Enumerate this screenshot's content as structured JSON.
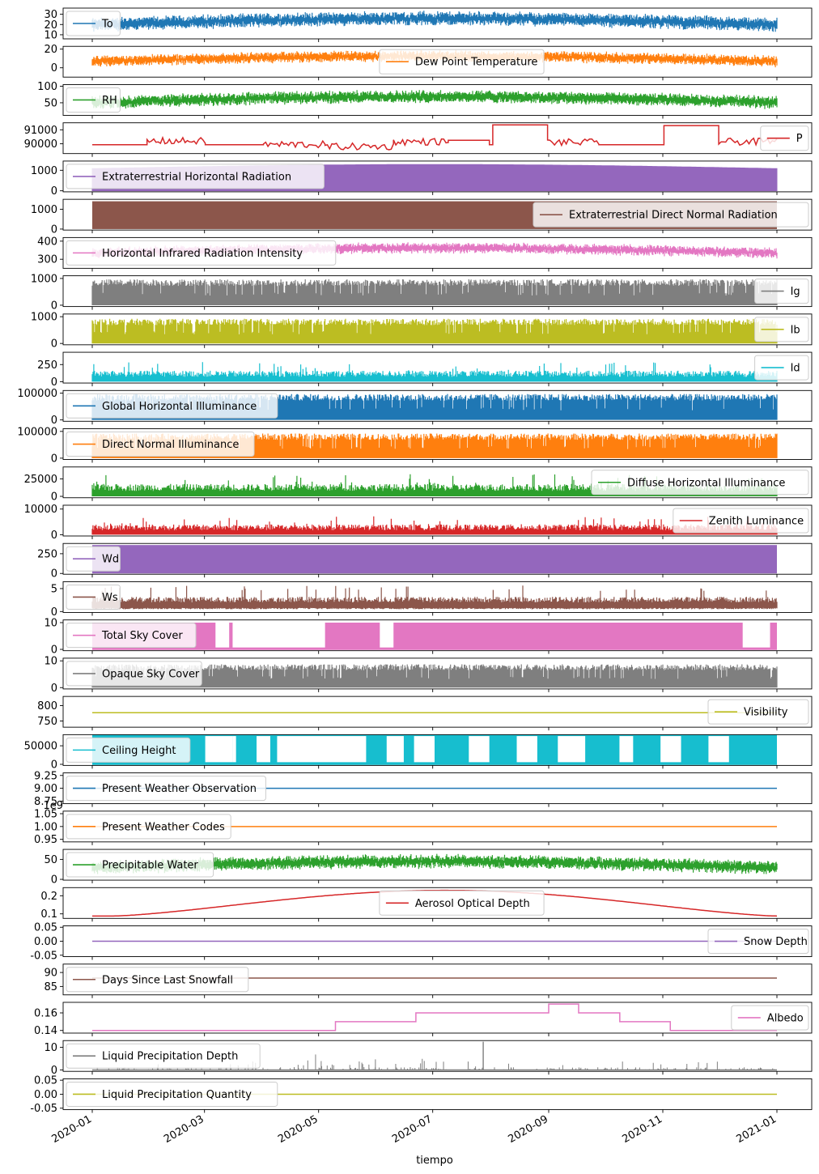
{
  "chart_data": {
    "type": "line",
    "xlabel": "tiempo",
    "x_ticks": [
      "2020-01",
      "2020-03",
      "2020-05",
      "2020-07",
      "2020-09",
      "2020-11",
      "2021-01"
    ],
    "x_range": [
      "2020-01-01",
      "2021-01-01"
    ],
    "panels": [
      {
        "name": "To",
        "color": "#1f77b4",
        "yticks": [
          "10",
          "20",
          "30"
        ],
        "ylim": [
          6,
          36
        ],
        "legend": "upper-left",
        "style": "noisy",
        "range": [
          14,
          30
        ]
      },
      {
        "name": "Dew Point Temperature",
        "color": "#ff7f0e",
        "yticks": [
          "0",
          "20"
        ],
        "ylim": [
          -10,
          23
        ],
        "legend": "lower-center",
        "style": "noisy",
        "range": [
          2,
          16
        ]
      },
      {
        "name": "RH",
        "color": "#2ca02c",
        "yticks": [
          "50",
          "100"
        ],
        "ylim": [
          12,
          105
        ],
        "legend": "upper-left",
        "style": "noisy",
        "range": [
          35,
          80
        ]
      },
      {
        "name": "P",
        "color": "#d62728",
        "yticks": [
          "90000",
          "91000"
        ],
        "ylim": [
          89300,
          91500
        ],
        "legend": "lower-right",
        "style": "steps",
        "range": [
          89700,
          91400
        ]
      },
      {
        "name": "Extraterrestrial Horizontal Radiation",
        "color": "#9467bd",
        "yticks": [
          "0",
          "1000"
        ],
        "ylim": [
          -50,
          1450
        ],
        "legend": "upper-left",
        "style": "envelope",
        "range": [
          0,
          1300
        ]
      },
      {
        "name": "Extraterrestrial Direct Normal Radiation",
        "color": "#8c564b",
        "yticks": [
          "0",
          "1000"
        ],
        "ylim": [
          -50,
          1500
        ],
        "legend": "lower-right",
        "style": "fill",
        "range": [
          0,
          1400
        ]
      },
      {
        "name": "Horizontal Infrared Radiation Intensity",
        "color": "#e377c2",
        "yticks": [
          "300",
          "400"
        ],
        "ylim": [
          250,
          420
        ],
        "legend": "upper-left",
        "style": "noisy",
        "range": [
          310,
          380
        ]
      },
      {
        "name": "Ig",
        "color": "#7f7f7f",
        "yticks": [
          "0",
          "1000"
        ],
        "ylim": [
          -50,
          1100
        ],
        "legend": "lower-right",
        "style": "spiky",
        "range": [
          0,
          1000
        ]
      },
      {
        "name": "Ib",
        "color": "#bcbd22",
        "yticks": [
          "0",
          "1000"
        ],
        "ylim": [
          -50,
          1100
        ],
        "legend": "lower-right",
        "style": "spiky",
        "range": [
          0,
          950
        ]
      },
      {
        "name": "Id",
        "color": "#17becf",
        "yticks": [
          "0",
          "250"
        ],
        "ylim": [
          -20,
          430
        ],
        "legend": "lower-right",
        "style": "spiky-low",
        "range": [
          0,
          200
        ]
      },
      {
        "name": "Global Horizontal Illuminance",
        "color": "#1f77b4",
        "yticks": [
          "0",
          "100000"
        ],
        "ylim": [
          -5000,
          110000
        ],
        "legend": "upper-left",
        "style": "spiky",
        "range": [
          0,
          100000
        ]
      },
      {
        "name": "Direct Normal Illuminance",
        "color": "#ff7f0e",
        "yticks": [
          "0",
          "100000"
        ],
        "ylim": [
          -5000,
          110000
        ],
        "legend": "upper-left",
        "style": "spiky",
        "range": [
          0,
          95000
        ]
      },
      {
        "name": "Diffuse Horizontal Illuminance",
        "color": "#2ca02c",
        "yticks": [
          "0",
          "25000"
        ],
        "ylim": [
          -2000,
          42000
        ],
        "legend": "lower-right",
        "style": "spiky-low",
        "range": [
          0,
          22000
        ]
      },
      {
        "name": "Zenith Luminance",
        "color": "#d62728",
        "yticks": [
          "0",
          "10000"
        ],
        "ylim": [
          -500,
          11500
        ],
        "legend": "lower-right",
        "style": "spiky-low",
        "range": [
          0,
          5000
        ]
      },
      {
        "name": "Wd",
        "color": "#9467bd",
        "yticks": [
          "0",
          "250"
        ],
        "ylim": [
          -10,
          380
        ],
        "legend": "upper-left",
        "style": "fill",
        "range": [
          0,
          360
        ]
      },
      {
        "name": "Ws",
        "color": "#8c564b",
        "yticks": [
          "0",
          "5"
        ],
        "ylim": [
          -0.2,
          6.5
        ],
        "legend": "upper-left",
        "style": "noisy-low",
        "range": [
          0.5,
          2.5
        ]
      },
      {
        "name": "Total Sky Cover",
        "color": "#e377c2",
        "yticks": [
          "0",
          "10"
        ],
        "ylim": [
          -0.5,
          11
        ],
        "legend": "upper-left",
        "style": "fill",
        "range": [
          0,
          10
        ]
      },
      {
        "name": "Opaque Sky Cover",
        "color": "#7f7f7f",
        "yticks": [
          "0",
          "10"
        ],
        "ylim": [
          -0.5,
          11
        ],
        "legend": "upper-left",
        "style": "spiky",
        "range": [
          0,
          9
        ]
      },
      {
        "name": "Visibility",
        "color": "#bcbd22",
        "yticks": [
          "750",
          "800"
        ],
        "ylim": [
          730,
          830
        ],
        "legend": "lower-right",
        "style": "flat",
        "value": 777
      },
      {
        "name": "Ceiling Height",
        "color": "#17becf",
        "yticks": [
          "0",
          "50000"
        ],
        "ylim": [
          -3000,
          80000
        ],
        "legend": "upper-left",
        "style": "fill",
        "range": [
          0,
          77777
        ]
      },
      {
        "name": "Present Weather Observation",
        "color": "#1f77b4",
        "yticks": [
          "8.75",
          "9.00",
          "9.25"
        ],
        "ylim": [
          8.7,
          9.3
        ],
        "legend": "upper-left",
        "style": "flat",
        "value": 9
      },
      {
        "name": "Present Weather Codes",
        "color": "#ff7f0e",
        "yticks": [
          "0.95",
          "1.00",
          "1.05"
        ],
        "ylim": [
          0.94,
          1.06
        ],
        "legend": "upper-left",
        "style": "flat",
        "value": 1.0,
        "offset_label": "1e9"
      },
      {
        "name": "Precipitable Water",
        "color": "#2ca02c",
        "yticks": [
          "0",
          "50"
        ],
        "ylim": [
          -2,
          75
        ],
        "legend": "upper-left",
        "style": "noisy",
        "range": [
          15,
          55
        ]
      },
      {
        "name": "Aerosol Optical Depth",
        "color": "#d62728",
        "yticks": [
          "0.1",
          "0.2"
        ],
        "ylim": [
          0.075,
          0.245
        ],
        "legend": "lower-center",
        "style": "curve",
        "range": [
          0.088,
          0.23
        ]
      },
      {
        "name": "Snow Depth",
        "color": "#9467bd",
        "yticks": [
          "-0.05",
          "0.00",
          "0.05"
        ],
        "ylim": [
          -0.055,
          0.055
        ],
        "legend": "lower-right",
        "style": "flat",
        "value": 0
      },
      {
        "name": "Days Since Last Snowfall",
        "color": "#8c564b",
        "yticks": [
          "85",
          "90"
        ],
        "ylim": [
          82,
          93
        ],
        "legend": "upper-left",
        "style": "flat",
        "value": 88
      },
      {
        "name": "Albedo",
        "color": "#e377c2",
        "yticks": [
          "0.14",
          "0.16"
        ],
        "ylim": [
          0.137,
          0.172
        ],
        "legend": "lower-right",
        "style": "albedo",
        "steps": [
          [
            "2020-01-01",
            0.14
          ],
          [
            "2020-05-10",
            0.15
          ],
          [
            "2020-06-22",
            0.16
          ],
          [
            "2020-09-01",
            0.17
          ],
          [
            "2020-09-17",
            0.16
          ],
          [
            "2020-10-09",
            0.15
          ],
          [
            "2020-11-05",
            0.14
          ],
          [
            "2021-01-01",
            0.14
          ]
        ]
      },
      {
        "name": "Liquid Precipitation Depth",
        "color": "#7f7f7f",
        "yticks": [
          "0",
          "10"
        ],
        "ylim": [
          -0.6,
          13
        ],
        "legend": "upper-left",
        "style": "rain",
        "range": [
          0,
          12.5
        ]
      },
      {
        "name": "Liquid Precipitation Quantity",
        "color": "#bcbd22",
        "yticks": [
          "-0.05",
          "0.00",
          "0.05"
        ],
        "ylim": [
          -0.055,
          0.055
        ],
        "legend": "upper-left",
        "style": "flat",
        "value": 0
      }
    ]
  }
}
